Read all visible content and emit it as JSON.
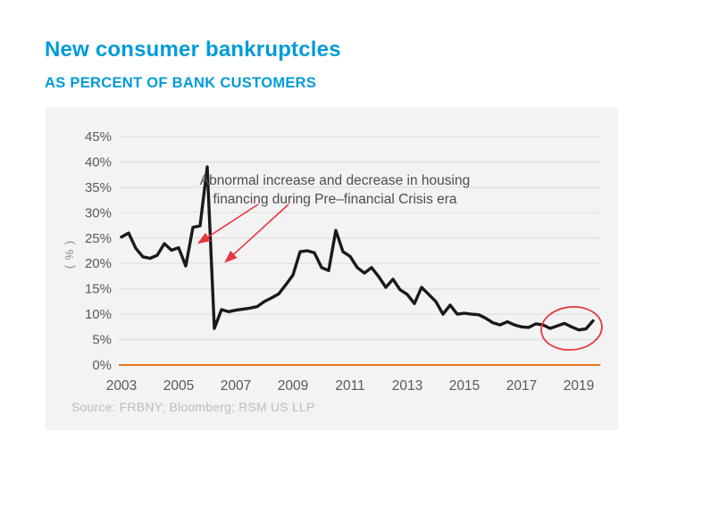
{
  "header": {
    "title": "New consumer bankruptcles",
    "subtitle": "AS PERCENT OF BANK CUSTOMERS"
  },
  "chart_data": {
    "type": "line",
    "title": "New consumer bankruptcles",
    "subtitle": "AS PERCENT OF BANK CUSTOMERS",
    "ylabel": "( % )",
    "ylim": [
      0,
      45
    ],
    "y_tick_labels": [
      "45%",
      "40%",
      "35%",
      "30%",
      "25%",
      "20%",
      "15%",
      "10%",
      "5%",
      "0%"
    ],
    "x_tick_labels": [
      "2003",
      "2005",
      "2007",
      "2009",
      "2011",
      "2013",
      "2015",
      "2017",
      "2019"
    ],
    "x_start": 2003,
    "x_step_years": 0.25,
    "grid": "horizontal only",
    "legend": "none",
    "series": [
      {
        "name": "New consumer bankruptcies as percent of bank customers",
        "values": [
          25.2,
          26.0,
          23.0,
          21.3,
          21.0,
          21.6,
          23.9,
          22.6,
          23.1,
          19.5,
          27.1,
          27.4,
          39.0,
          7.2,
          10.9,
          10.5,
          10.8,
          11.0,
          11.2,
          11.5,
          12.5,
          13.2,
          14.0,
          15.8,
          17.7,
          22.3,
          22.5,
          22.1,
          19.2,
          18.6,
          26.5,
          22.3,
          21.4,
          19.2,
          18.1,
          19.2,
          17.4,
          15.3,
          16.9,
          14.8,
          13.9,
          12.1,
          15.3,
          13.9,
          12.5,
          10.0,
          11.8,
          10.0,
          10.2,
          10.0,
          9.9,
          9.2,
          8.3,
          7.9,
          8.5,
          7.9,
          7.5,
          7.4,
          8.1,
          7.9,
          7.2,
          7.7,
          8.2,
          7.5,
          6.9,
          7.1,
          8.7
        ]
      }
    ],
    "annotation": {
      "line1": "Abnormal increase and decrease in housing",
      "line2": "financing during Pre–financial Crisis era"
    },
    "source": "Source: FRBNY; Bloomberg; RSM US LLP",
    "colors": {
      "title_blue": "#009bd9",
      "series_line": "#1a1a1a",
      "zero_baseline_orange": "#e87722",
      "gridline": "#dcdcdc",
      "panel_background": "#f3f3f4",
      "annotation_red": "#e8363d",
      "axis_text": "#58595b",
      "annotation_text": "#4d4d4f",
      "source_text": "#bcbcbc"
    }
  }
}
